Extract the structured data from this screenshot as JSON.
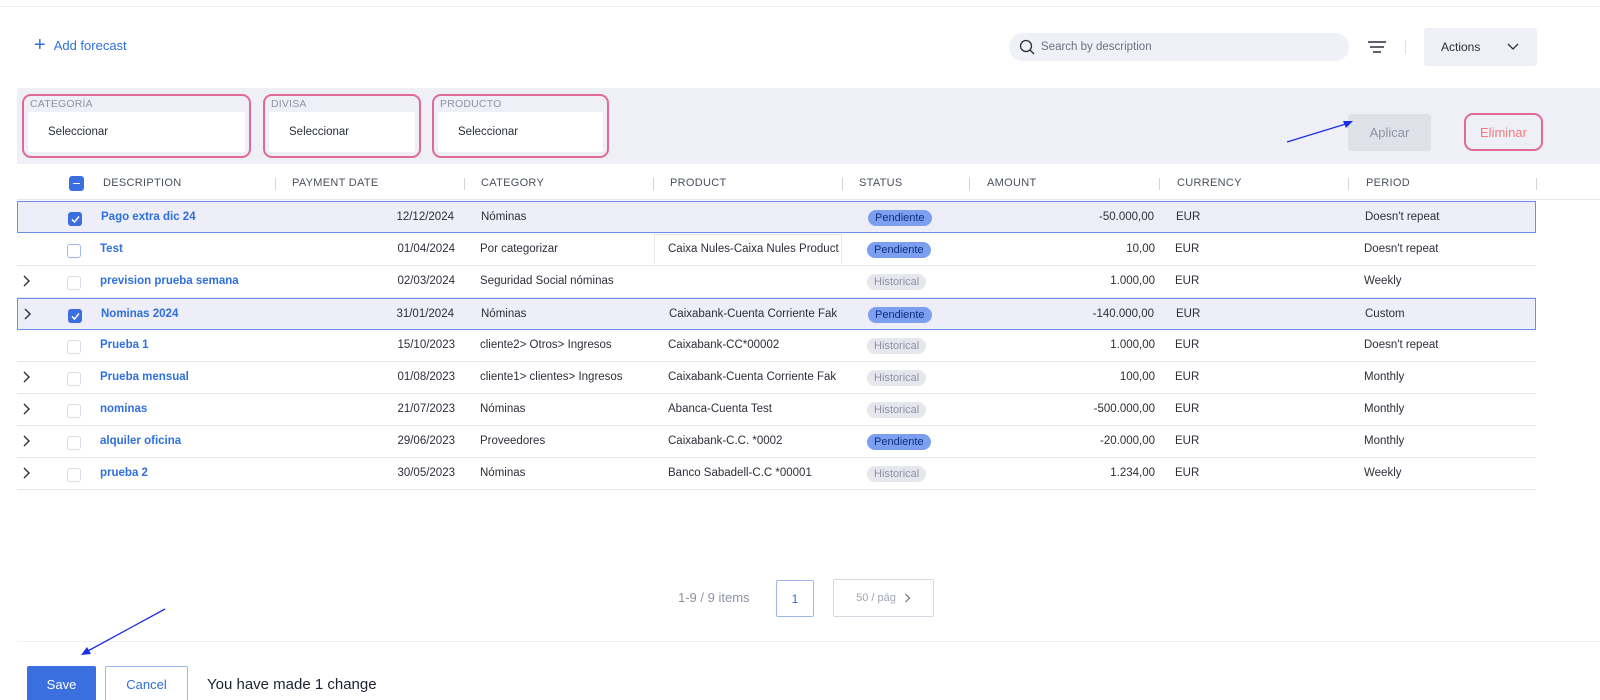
{
  "toolbar": {
    "add_forecast_label": "Add forecast",
    "search_placeholder": "Search by description",
    "actions_label": "Actions"
  },
  "filters": {
    "categoria": {
      "label": "CATEGORÍA",
      "value": "Seleccionar"
    },
    "divisa": {
      "label": "DIVISA",
      "value": "Seleccionar"
    },
    "producto": {
      "label": "PRODUCTO",
      "value": "Seleccionar"
    },
    "apply_label": "Aplicar",
    "delete_label": "Eliminar"
  },
  "table": {
    "columns": [
      "DESCRIPTION",
      "PAYMENT DATE",
      "CATEGORY",
      "PRODUCT",
      "STATUS",
      "AMOUNT",
      "CURRENCY",
      "PERIOD"
    ],
    "rows": [
      {
        "description": "Pago extra dic 24",
        "date": "12/12/2024",
        "category": "Nóminas",
        "product": "",
        "status": "Pendiente",
        "amount": "-50.000,00",
        "currency": "EUR",
        "period": "Doesn't repeat"
      },
      {
        "description": "Test",
        "date": "01/04/2024",
        "category": "Por categorizar",
        "product": "Caixa Nules-Caixa Nules Product",
        "status": "Pendiente",
        "amount": "10,00",
        "currency": "EUR",
        "period": "Doesn't repeat"
      },
      {
        "description": "prevision prueba semana",
        "date": "02/03/2024",
        "category": "Seguridad Social nóminas",
        "product": "",
        "status": "Historical",
        "amount": "1.000,00",
        "currency": "EUR",
        "period": "Weekly"
      },
      {
        "description": "Nominas 2024",
        "date": "31/01/2024",
        "category": "Nóminas",
        "product": "Caixabank-Cuenta Corriente Fak",
        "status": "Pendiente",
        "amount": "-140.000,00",
        "currency": "EUR",
        "period": "Custom"
      },
      {
        "description": "Prueba 1",
        "date": "15/10/2023",
        "category": "cliente2> Otros> Ingresos",
        "product": "Caixabank-CC*00002",
        "status": "Historical",
        "amount": "1.000,00",
        "currency": "EUR",
        "period": "Doesn't repeat"
      },
      {
        "description": "Prueba mensual",
        "date": "01/08/2023",
        "category": "cliente1> clientes> Ingresos",
        "product": "Caixabank-Cuenta Corriente Fak",
        "status": "Historical",
        "amount": "100,00",
        "currency": "EUR",
        "period": "Monthly"
      },
      {
        "description": "nominas",
        "date": "21/07/2023",
        "category": "Nóminas",
        "product": "Abanca-Cuenta Test",
        "status": "Historical",
        "amount": "-500.000,00",
        "currency": "EUR",
        "period": "Monthly"
      },
      {
        "description": "alquiler oficina",
        "date": "29/06/2023",
        "category": "Proveedores",
        "product": "Caixabank-C.C. *0002",
        "status": "Pendiente",
        "amount": "-20.000,00",
        "currency": "EUR",
        "period": "Monthly"
      },
      {
        "description": "prueba 2",
        "date": "30/05/2023",
        "category": "Nóminas",
        "product": "Banco Sabadell-C.C *00001",
        "status": "Historical",
        "amount": "1.234,00",
        "currency": "EUR",
        "period": "Weekly"
      }
    ]
  },
  "pagination": {
    "info": "1-9 / 9 items",
    "current_page": "1",
    "page_size": "50 / pág"
  },
  "footer": {
    "save_label": "Save",
    "cancel_label": "Cancel",
    "change_message": "You have made 1 change"
  }
}
